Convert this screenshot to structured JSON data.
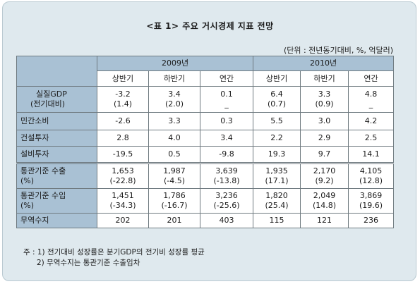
{
  "title": "<표 1> 주요 거시경제 지표 전망",
  "unit": "(단위 : 전년동기대비, %, 억달러)",
  "years": [
    "2009년",
    "2010년"
  ],
  "periods": [
    "상반기",
    "하반기",
    "연간",
    "상반기",
    "하반기",
    "연간"
  ],
  "rows": [
    {
      "label": [
        "실질GDP",
        "(전기대비)"
      ],
      "values": [
        [
          "-3.2",
          "(1.4)"
        ],
        [
          "3.4",
          "(2.0)"
        ],
        [
          "0.1",
          "_"
        ],
        [
          "6.4",
          "(0.7)"
        ],
        [
          "3.3",
          "(0.9)"
        ],
        [
          "4.8",
          "_"
        ]
      ]
    },
    {
      "label": [
        "민간소비"
      ],
      "values": [
        [
          "-2.6"
        ],
        [
          "3.3"
        ],
        [
          "0.3"
        ],
        [
          "5.5"
        ],
        [
          "3.0"
        ],
        [
          "4.2"
        ]
      ]
    },
    {
      "label": [
        "건설투자"
      ],
      "values": [
        [
          "2.8"
        ],
        [
          "4.0"
        ],
        [
          "3.4"
        ],
        [
          "2.2"
        ],
        [
          "2.9"
        ],
        [
          "2.5"
        ]
      ]
    },
    {
      "label": [
        "설비투자"
      ],
      "values": [
        [
          "-19.5"
        ],
        [
          "0.5"
        ],
        [
          "-9.8"
        ],
        [
          "19.3"
        ],
        [
          "9.7"
        ],
        [
          "14.1"
        ]
      ]
    },
    {
      "label": [
        "통관기준 수출",
        "(%)"
      ],
      "values": [
        [
          "1,653",
          "(-22.8)"
        ],
        [
          "1,987",
          "(-4.5)"
        ],
        [
          "3,639",
          "(-13.8)"
        ],
        [
          "1,935",
          "(17.1)"
        ],
        [
          "2,170",
          "(9.2)"
        ],
        [
          "4,105",
          "(12.8)"
        ]
      ]
    },
    {
      "label": [
        "통관기준 수입",
        "(%)"
      ],
      "values": [
        [
          "1,451",
          "(-34.3)"
        ],
        [
          "1,786",
          "(-16.7)"
        ],
        [
          "3,236",
          "(-25.6)"
        ],
        [
          "1,820",
          "(25.4)"
        ],
        [
          "2,049",
          "(14.8)"
        ],
        [
          "3,869",
          "(19.6)"
        ]
      ]
    },
    {
      "label": [
        "무역수지"
      ],
      "values": [
        [
          "202"
        ],
        [
          "201"
        ],
        [
          "403"
        ],
        [
          "115"
        ],
        [
          "121"
        ],
        [
          "236"
        ]
      ]
    }
  ],
  "notes": [
    "주 : 1) 전기대비 성장률은 분기GDP의 전기비 성장률 평균",
    "2) 무역수지는 통관기준 수출입차"
  ],
  "colors": {
    "header_bg": "#a9c1d4",
    "frame_bg": "#dfe9ee",
    "cell_bg": "#ffffff",
    "border": "#6f7a80"
  }
}
